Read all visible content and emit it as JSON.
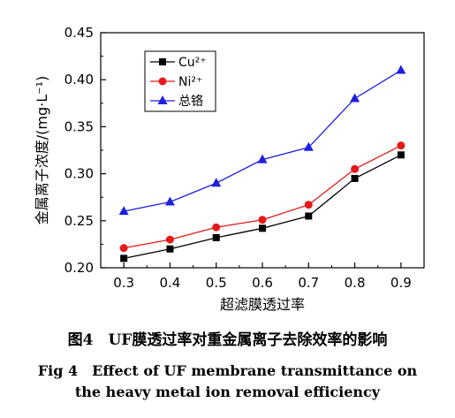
{
  "chart_data": {
    "type": "line",
    "x": [
      0.3,
      0.4,
      0.5,
      0.6,
      0.7,
      0.8,
      0.9
    ],
    "xlim": [
      0.25,
      0.95
    ],
    "ylim": [
      0.2,
      0.45
    ],
    "x_ticks": [
      "0.3",
      "0.4",
      "0.5",
      "0.6",
      "0.7",
      "0.8",
      "0.9"
    ],
    "y_ticks": [
      "0.20",
      "0.25",
      "0.30",
      "0.35",
      "0.40",
      "0.45"
    ],
    "xlabel": "超滤膜透过率",
    "ylabel": "金属离子浓度/(mg·L⁻¹)",
    "grid": false,
    "legend_position": "top-left",
    "series": [
      {
        "name": "Cu²⁺",
        "color": "#000000",
        "marker": "square",
        "values": [
          0.21,
          0.22,
          0.232,
          0.242,
          0.255,
          0.295,
          0.32
        ]
      },
      {
        "name": "Ni²⁺",
        "color": "#e41a1a",
        "marker": "circle",
        "values": [
          0.221,
          0.23,
          0.243,
          0.251,
          0.267,
          0.305,
          0.33
        ]
      },
      {
        "name": "总铬",
        "color": "#1f1fe0",
        "marker": "triangle",
        "values": [
          0.26,
          0.27,
          0.29,
          0.315,
          0.328,
          0.38,
          0.41
        ]
      }
    ]
  },
  "caption": {
    "cn": "图4　UF膜透过率对重金属离子去除效率的影响",
    "en_line1": "Fig 4　Effect of UF membrane transmittance on",
    "en_line2": "the heavy metal ion removal efficiency"
  }
}
